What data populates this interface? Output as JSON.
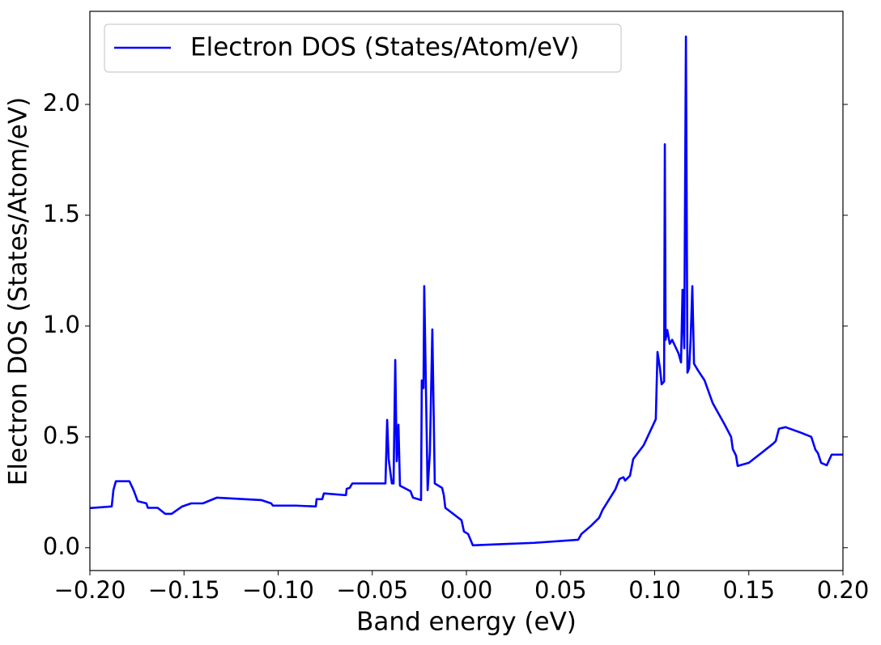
{
  "chart_data": {
    "type": "line",
    "xlabel": "Band energy (eV)",
    "ylabel": "Electron DOS (States/Atom/eV)",
    "x": [
      -0.2,
      -0.1884,
      -0.1875,
      -0.1862,
      -0.179,
      -0.1768,
      -0.1746,
      -0.17,
      -0.1692,
      -0.164,
      -0.16,
      -0.1566,
      -0.151,
      -0.1462,
      -0.14,
      -0.1325,
      -0.109,
      -0.1037,
      -0.1028,
      -0.0908,
      -0.08,
      -0.0796,
      -0.0766,
      -0.0757,
      -0.064,
      -0.0636,
      -0.062,
      -0.0606,
      -0.043,
      -0.0421,
      -0.0413,
      -0.0396,
      -0.0387,
      -0.0378,
      -0.037,
      -0.0361,
      -0.0353,
      -0.0297,
      -0.0284,
      -0.0241,
      -0.0237,
      -0.0228,
      -0.0224,
      -0.0215,
      -0.0206,
      -0.0194,
      -0.0181,
      -0.0168,
      -0.0129,
      -0.012,
      -0.0112,
      -0.0026,
      -0.0013,
      0.0009,
      0.0034,
      0.0361,
      0.0594,
      0.0611,
      0.0662,
      0.0705,
      0.0723,
      0.0791,
      0.0813,
      0.0834,
      0.0843,
      0.0869,
      0.0886,
      0.0942,
      0.1006,
      0.1015,
      0.1028,
      0.1037,
      0.105,
      0.1054,
      0.1058,
      0.1067,
      0.108,
      0.1093,
      0.1127,
      0.114,
      0.1148,
      0.1157,
      0.1166,
      0.1174,
      0.1183,
      0.1191,
      0.12,
      0.1209,
      0.123,
      0.1265,
      0.1308,
      0.1372,
      0.1406,
      0.1415,
      0.1432,
      0.1441,
      0.15,
      0.1566,
      0.163,
      0.1643,
      0.166,
      0.1695,
      0.178,
      0.1832,
      0.1854,
      0.1867,
      0.1884,
      0.1914,
      0.194,
      0.2
    ],
    "series": [
      {
        "name": "Electron DOS (States/Atom/eV)",
        "color": "#0000ff",
        "values": [
          0.179,
          0.186,
          0.26,
          0.3,
          0.3,
          0.26,
          0.21,
          0.2,
          0.18,
          0.18,
          0.153,
          0.153,
          0.186,
          0.2,
          0.2,
          0.226,
          0.215,
          0.2,
          0.19,
          0.19,
          0.186,
          0.219,
          0.219,
          0.245,
          0.237,
          0.266,
          0.27,
          0.29,
          0.29,
          0.577,
          0.4,
          0.29,
          0.29,
          0.847,
          0.39,
          0.555,
          0.28,
          0.255,
          0.226,
          0.215,
          0.755,
          0.72,
          1.18,
          0.72,
          0.26,
          0.43,
          0.985,
          0.29,
          0.27,
          0.237,
          0.18,
          0.124,
          0.073,
          0.062,
          0.011,
          0.022,
          0.036,
          0.062,
          0.099,
          0.135,
          0.17,
          0.263,
          0.31,
          0.318,
          0.303,
          0.325,
          0.4,
          0.463,
          0.58,
          0.883,
          0.81,
          0.737,
          0.75,
          1.82,
          0.938,
          0.982,
          0.92,
          0.938,
          0.876,
          0.836,
          1.164,
          0.9,
          2.306,
          0.79,
          0.81,
          0.94,
          1.18,
          0.83,
          0.8,
          0.755,
          0.653,
          0.555,
          0.5,
          0.445,
          0.416,
          0.369,
          0.383,
          0.427,
          0.47,
          0.481,
          0.537,
          0.544,
          0.518,
          0.5,
          0.442,
          0.427,
          0.383,
          0.372,
          0.42,
          0.42
        ]
      }
    ],
    "xlim": [
      -0.2,
      0.2
    ],
    "ylim": [
      -0.103,
      2.42
    ],
    "xticks": [
      {
        "value": -0.2,
        "label": "−0.20"
      },
      {
        "value": -0.15,
        "label": "−0.15"
      },
      {
        "value": -0.1,
        "label": "−0.10"
      },
      {
        "value": -0.05,
        "label": "−0.05"
      },
      {
        "value": 0,
        "label": "0.00"
      },
      0.05,
      {
        "value": 0.1,
        "label": "0.10"
      },
      0.15,
      {
        "value": 0.2,
        "label": "0.20"
      }
    ],
    "yticks": [
      {
        "value": 0,
        "label": "0.0"
      },
      0.5,
      {
        "value": 1,
        "label": "1.0"
      },
      1.5,
      {
        "value": 2,
        "label": "2.0"
      }
    ],
    "legend": "upper left"
  }
}
